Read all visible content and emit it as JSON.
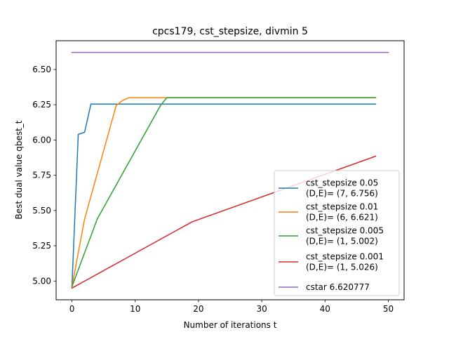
{
  "chart_data": {
    "type": "line",
    "title": "cpcs179, cst_stepsize, divmin 5",
    "xlabel": "Number of iterations t",
    "ylabel": "Best dual value qbest_t",
    "xlim": [
      -2.5,
      52.5
    ],
    "ylim": [
      4.867,
      6.704
    ],
    "xticks": [
      0,
      10,
      20,
      30,
      40,
      50
    ],
    "xtick_labels": [
      "0",
      "10",
      "20",
      "30",
      "40",
      "50"
    ],
    "yticks": [
      5.0,
      5.25,
      5.5,
      5.75,
      6.0,
      6.25,
      6.5
    ],
    "ytick_labels": [
      "5.00",
      "5.25",
      "5.50",
      "5.75",
      "6.00",
      "6.25",
      "6.50"
    ],
    "grid": false,
    "legend_position": "lower-right",
    "series": [
      {
        "name": "cst_stepsize 0.05\n(D,E)= (7, 6.756)",
        "color": "#1f77b4",
        "x": [
          0,
          1,
          2,
          3,
          4,
          48
        ],
        "y": [
          4.96,
          6.04,
          6.055,
          6.255,
          6.255,
          6.255
        ]
      },
      {
        "name": "cst_stepsize 0.01\n(D,E)= (6, 6.621)",
        "color": "#ff7f0e",
        "x": [
          0,
          2,
          7,
          8,
          9,
          48
        ],
        "y": [
          4.96,
          5.44,
          6.245,
          6.28,
          6.3,
          6.3
        ]
      },
      {
        "name": "cst_stepsize 0.005\n(D,E)= (1, 5.002)",
        "color": "#2ca02c",
        "x": [
          0,
          4,
          14,
          15,
          48
        ],
        "y": [
          4.96,
          5.44,
          6.245,
          6.3,
          6.3
        ]
      },
      {
        "name": "cst_stepsize 0.001\n(D,E)= (1, 5.026)",
        "color": "#d62728",
        "x": [
          0,
          19,
          48
        ],
        "y": [
          4.95,
          5.42,
          5.885
        ]
      },
      {
        "name": "cstar 6.620777",
        "color": "#9467bd",
        "x": [
          0,
          50
        ],
        "y": [
          6.621,
          6.621
        ]
      }
    ]
  }
}
